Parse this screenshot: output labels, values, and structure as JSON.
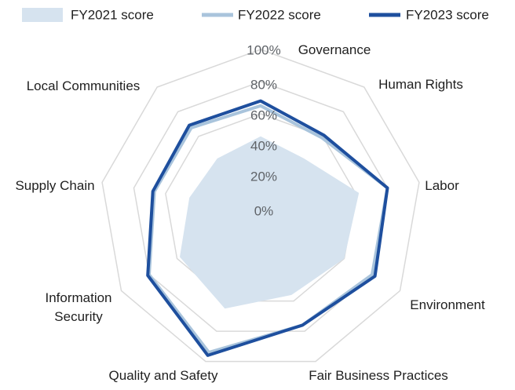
{
  "chart_data": {
    "type": "radar",
    "categories": [
      "Governance",
      "Human Rights",
      "Labor",
      "Environment",
      "Fair Business Practices",
      "Quality and Safety",
      [
        "Information",
        "Security"
      ],
      "Supply Chain",
      "Local Communities"
    ],
    "ticks": [
      "0%",
      "20%",
      "40%",
      "60%",
      "80%",
      "100%"
    ],
    "range": [
      0,
      100
    ],
    "grid": true,
    "legend_position": "top",
    "series": [
      {
        "name": "FY2021 score",
        "style": "filled-area",
        "color": "#d6e3ef",
        "values": [
          46,
          42,
          62,
          60,
          56,
          65,
          58,
          45,
          42
        ]
      },
      {
        "name": "FY2022 score",
        "style": "line",
        "color": "#a9c4dc",
        "values": [
          65,
          59,
          80,
          80,
          76,
          94,
          80,
          67,
          67
        ]
      },
      {
        "name": "FY2023 score",
        "style": "line",
        "color": "#1e4f9e",
        "values": [
          68,
          61,
          80,
          82,
          76,
          96,
          81,
          68,
          69
        ]
      }
    ]
  }
}
